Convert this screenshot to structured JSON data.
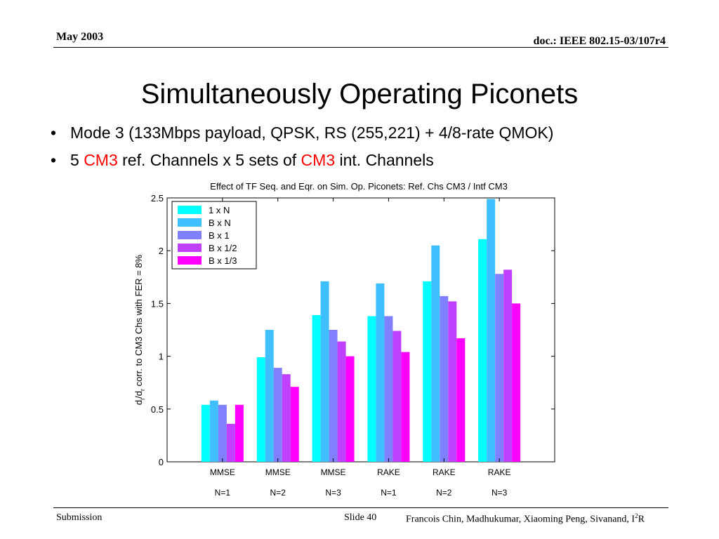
{
  "header": {
    "date": "May 2003",
    "doc": "doc.: IEEE 802.15-03/107r4"
  },
  "slide": {
    "title": "Simultaneously Operating Piconets",
    "bullet1": "Mode 3 (133Mbps payload, QPSK, RS (255,221) + 4/8-rate QMOK)",
    "bullet2": {
      "pre": "5 ",
      "red1": "CM3",
      "mid": " ref. Channels x 5 sets of ",
      "red2": "CM3",
      "post": " int. Channels"
    },
    "bullet_glyph": "•"
  },
  "footer": {
    "left": "Submission",
    "slide": "Slide 40",
    "authors": "Francois Chin, Madhukumar, Xiaoming Peng, Sivanand, I",
    "authors_sup": "2",
    "authors_end": "R"
  },
  "chart_data": {
    "type": "bar",
    "title": "Effect of TF Seq. and Eqr. on Sim. Op. Piconets: Ref. Chs CM3 / Intf CM3",
    "ylabel": "d_i/d_r corr. to CM3 Chs with FER = 8%",
    "ylabel_parts": {
      "a": "d",
      "sub1": "i",
      "b": "/d",
      "sub2": "r",
      "c": " corr. to CM3 Chs with FER = 8%"
    },
    "ylim": [
      0,
      2.5
    ],
    "yticks": [
      "0",
      "0.5",
      "1",
      "1.5",
      "2",
      "2.5"
    ],
    "categories": [
      "MMSE",
      "MMSE",
      "MMSE",
      "RAKE",
      "RAKE",
      "RAKE"
    ],
    "categories_line2": [
      "N=1",
      "N=2",
      "N=3",
      "N=1",
      "N=2",
      "N=3"
    ],
    "legend_position": "top-left",
    "series": [
      {
        "name": "1 x N",
        "color": "#00ffff",
        "values": [
          0.54,
          0.99,
          1.39,
          1.38,
          1.71,
          2.11
        ]
      },
      {
        "name": "B x N",
        "color": "#40bfff",
        "values": [
          0.58,
          1.25,
          1.71,
          1.69,
          2.05,
          2.49
        ]
      },
      {
        "name": "B x 1",
        "color": "#8080ff",
        "values": [
          0.54,
          0.89,
          1.25,
          1.38,
          1.57,
          1.78
        ]
      },
      {
        "name": "B x 1/2",
        "color": "#bf40ff",
        "values": [
          0.36,
          0.83,
          1.14,
          1.24,
          1.52,
          1.82
        ]
      },
      {
        "name": "B x 1/3",
        "color": "#ff00ff",
        "values": [
          0.54,
          0.71,
          1.0,
          1.04,
          1.17,
          1.5
        ]
      }
    ]
  }
}
